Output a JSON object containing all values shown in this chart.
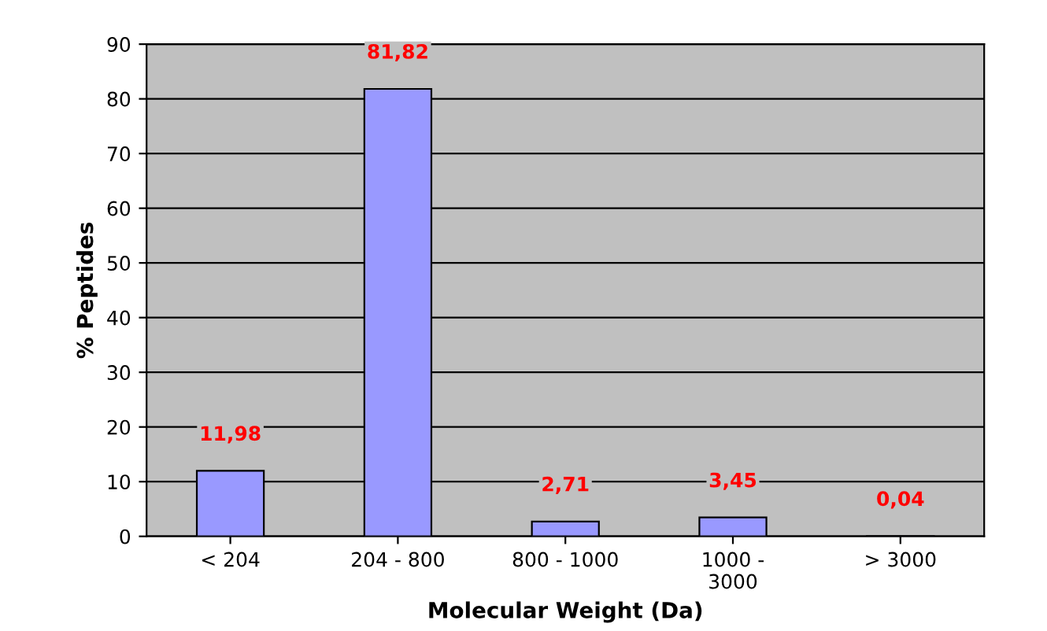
{
  "chart_data": {
    "type": "bar",
    "xlabel": "Molecular Weight (Da)",
    "ylabel": "% Peptides",
    "categories": [
      "< 204",
      "204 - 800",
      "800 - 1000",
      "1000 -\n3000",
      "> 3000"
    ],
    "values": [
      11.98,
      81.82,
      2.71,
      3.45,
      0.04
    ],
    "value_labels": [
      "11,98",
      "81,82",
      "2,71",
      "3,45",
      "0,04"
    ],
    "color": "#9999ff",
    "ylim": [
      0,
      90
    ],
    "yticks": [
      0,
      10,
      20,
      30,
      40,
      50,
      60,
      70,
      80,
      90
    ],
    "grid": "y"
  }
}
